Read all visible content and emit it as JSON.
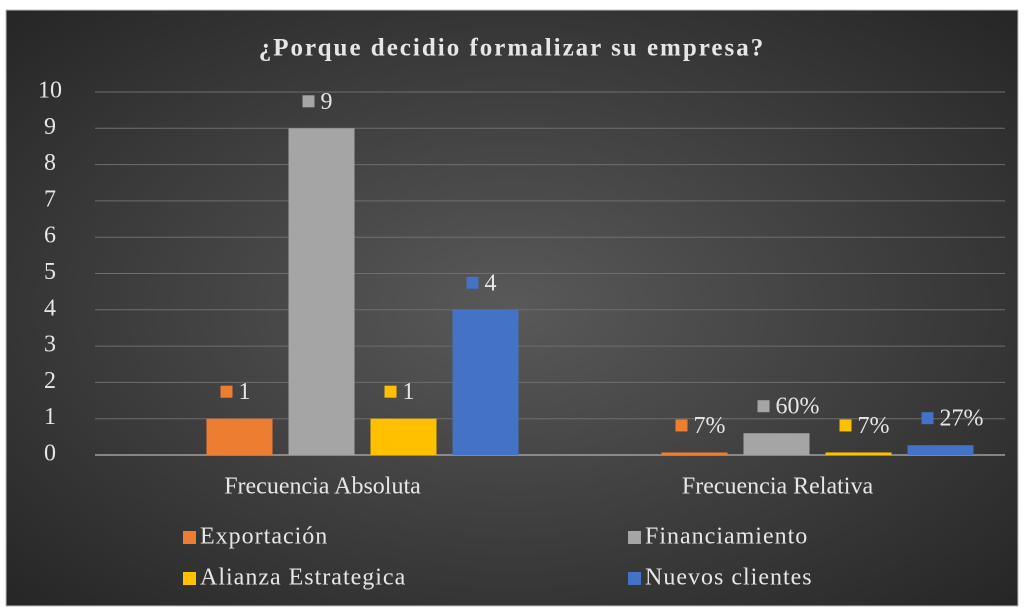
{
  "chart_data": {
    "type": "bar",
    "title": "¿Porque decidio formalizar su empresa?",
    "categories": [
      "Frecuencia Absoluta",
      "Frecuencia Relativa"
    ],
    "series": [
      {
        "name": "Exportación",
        "color": "#ed7d31",
        "values": [
          1,
          0.07
        ],
        "value_labels": [
          "1",
          "7%"
        ]
      },
      {
        "name": "Financiamiento",
        "color": "#a5a5a5",
        "values": [
          9,
          0.6
        ],
        "value_labels": [
          "9",
          "60%"
        ]
      },
      {
        "name": "Alianza Estrategica",
        "color": "#ffc000",
        "values": [
          1,
          0.07
        ],
        "value_labels": [
          "1",
          "7%"
        ]
      },
      {
        "name": "Nuevos clientes",
        "color": "#4472c4",
        "values": [
          4,
          0.27
        ],
        "value_labels": [
          "4",
          "27%"
        ]
      }
    ],
    "ylim": [
      0,
      10
    ],
    "yticks": [
      0,
      1,
      2,
      3,
      4,
      5,
      6,
      7,
      8,
      9,
      10
    ],
    "grid": true,
    "legend": "bottom"
  }
}
